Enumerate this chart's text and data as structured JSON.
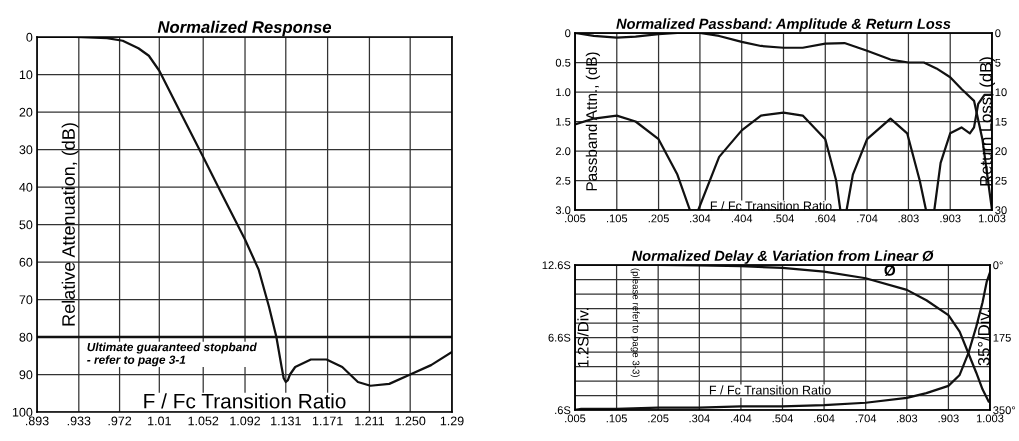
{
  "chart_data": [
    {
      "type": "line",
      "title": "Normalized Response",
      "xlabel": "F / Fc Transition Ratio",
      "ylabel": "Relative Attenuation, (dB)",
      "xlim": [
        0.893,
        1.29
      ],
      "xticks": [
        {
          "value": 0.893,
          "label": ".893"
        },
        {
          "value": 0.933,
          "label": ".933"
        },
        {
          "value": 0.972,
          "label": ".972"
        },
        1.01,
        1.052,
        1.092,
        1.131,
        1.171,
        1.211,
        {
          "value": 1.25,
          "label": "1.250"
        },
        1.29
      ],
      "ylim": [
        100,
        0
      ],
      "yticks": [
        0,
        10,
        20,
        30,
        40,
        50,
        60,
        70,
        80,
        90,
        100
      ],
      "grid": true,
      "legend": false,
      "marker": "none",
      "line_style": "solid",
      "series": [
        {
          "color": "#111111",
          "x": [
            0.893,
            0.93,
            0.96,
            0.975,
            0.99,
            1.0,
            1.01,
            1.03,
            1.052,
            1.07,
            1.092,
            1.105,
            1.115,
            1.122,
            1.127,
            1.129,
            1.131,
            1.133,
            1.135,
            1.14,
            1.155,
            1.17,
            1.185,
            1.2,
            1.212,
            1.23,
            1.25,
            1.27,
            1.29
          ],
          "values": [
            0,
            0,
            0.3,
            1,
            3,
            5,
            9,
            20,
            32,
            42,
            54,
            62,
            72,
            80,
            88,
            91,
            92,
            91.5,
            90,
            88,
            86,
            86,
            88,
            92,
            93,
            92.5,
            90,
            87.5,
            84
          ]
        }
      ],
      "ref_lines": [
        {
          "axis": "y",
          "value": 80,
          "label": "Ultimate guaranteed stopband\n- refer to page 3-1",
          "color": "#111111",
          "line_style": "solid"
        }
      ]
    },
    {
      "type": "line",
      "title": "Normalized Passband: Amplitude & Return Loss",
      "xlabel": "F / Fc Transition Ratio",
      "ylabel": "Passband Attn., (dB)",
      "y2label": "Return Loss, (dB)",
      "xlim": [
        0.005,
        1.003
      ],
      "xticks": [
        {
          "value": 0.005,
          "label": ".005"
        },
        {
          "value": 0.105,
          "label": ".105"
        },
        {
          "value": 0.205,
          "label": ".205"
        },
        {
          "value": 0.304,
          "label": ".304"
        },
        {
          "value": 0.404,
          "label": ".404"
        },
        {
          "value": 0.504,
          "label": ".504"
        },
        {
          "value": 0.604,
          "label": ".604"
        },
        {
          "value": 0.704,
          "label": ".704"
        },
        {
          "value": 0.803,
          "label": ".803"
        },
        {
          "value": 0.903,
          "label": ".903"
        },
        {
          "value": 1.003,
          "label": "1.003"
        }
      ],
      "ylim": [
        3.0,
        0
      ],
      "yticks": [
        0,
        {
          "value": 0.5,
          "label": "0.5"
        },
        {
          "value": 1.0,
          "label": "1.0"
        },
        {
          "value": 1.5,
          "label": "1.5"
        },
        {
          "value": 2.0,
          "label": "2.0"
        },
        {
          "value": 2.5,
          "label": "2.5"
        },
        {
          "value": 3.0,
          "label": "3.0"
        }
      ],
      "y2lim": [
        30,
        0
      ],
      "y2ticks": [
        0,
        5,
        10,
        15,
        20,
        25,
        30
      ],
      "grid": true,
      "legend": false,
      "marker": "none",
      "line_style": "solid",
      "series": [
        {
          "color": "#111111",
          "x": [
            0.005,
            0.05,
            0.105,
            0.15,
            0.205,
            0.25,
            0.304,
            0.35,
            0.404,
            0.45,
            0.504,
            0.55,
            0.604,
            0.65,
            0.704,
            0.76,
            0.803,
            0.84,
            0.87,
            0.903,
            0.93,
            0.96,
            0.98,
            1.003
          ],
          "values": [
            0,
            0.05,
            0.08,
            0.06,
            0.02,
            0,
            0,
            0.05,
            0.15,
            0.22,
            0.25,
            0.25,
            0.18,
            0.17,
            0.3,
            0.45,
            0.5,
            0.5,
            0.6,
            0.75,
            0.95,
            1.15,
            1.8,
            3.0
          ]
        },
        {
          "color": "#111111",
          "axis": "y2",
          "x": [
            0.005,
            0.05,
            0.105,
            0.15,
            0.205,
            0.25,
            0.28,
            0.29,
            0.3,
            0.35,
            0.404,
            0.45,
            0.504,
            0.55,
            0.604,
            0.63,
            0.64,
            0.647,
            0.655,
            0.67,
            0.704,
            0.76,
            0.8,
            0.83,
            0.845,
            0.855,
            0.865,
            0.88,
            0.903,
            0.93,
            0.95,
            0.96,
            0.97,
            0.985,
            1.003
          ],
          "values": [
            15.5,
            14.5,
            14,
            15,
            18,
            24,
            30,
            null,
            30,
            21,
            16.5,
            14,
            13.5,
            14,
            18,
            25,
            30,
            null,
            30,
            24,
            18,
            14.5,
            17,
            25,
            30,
            null,
            30,
            22,
            17,
            16,
            17,
            16,
            12,
            10.5,
            10.5
          ]
        }
      ]
    },
    {
      "type": "line",
      "title": "Normalized Delay & Variation from Linear Ø",
      "ylabel": "1.2S/Div.",
      "y2label": "35°/Div.",
      "xlabel": "F / Fc Transition Ratio",
      "xlim": [
        0.005,
        1.003
      ],
      "xticks": [
        {
          "value": 0.005,
          "label": ".005"
        },
        {
          "value": 0.105,
          "label": ".105"
        },
        {
          "value": 0.205,
          "label": ".205"
        },
        {
          "value": 0.304,
          "label": ".304"
        },
        {
          "value": 0.404,
          "label": ".404"
        },
        {
          "value": 0.504,
          "label": ".504"
        },
        {
          "value": 0.604,
          "label": ".604"
        },
        {
          "value": 0.704,
          "label": ".704"
        },
        {
          "value": 0.803,
          "label": ".803"
        },
        {
          "value": 0.903,
          "label": ".903"
        },
        {
          "value": 1.003,
          "label": "1.003"
        }
      ],
      "ylim": [
        0.6,
        12.6
      ],
      "yticks": [
        {
          "value": 0.6,
          "label": ".6S"
        },
        {
          "value": 1.8,
          "label": null
        },
        {
          "value": 3.0,
          "label": null
        },
        {
          "value": 4.2,
          "label": null
        },
        {
          "value": 5.4,
          "label": null
        },
        {
          "value": 6.6,
          "label": "6.6S"
        },
        {
          "value": 7.8,
          "label": null
        },
        {
          "value": 9.0,
          "label": null
        },
        {
          "value": 10.2,
          "label": null
        },
        {
          "value": 11.4,
          "label": null
        },
        {
          "value": 12.6,
          "label": "12.6S"
        }
      ],
      "y2lim": [
        350,
        0
      ],
      "y2ticks": [
        {
          "value": 0,
          "label": "0°"
        },
        175,
        {
          "value": 350,
          "label": "350°"
        }
      ],
      "grid": true,
      "legend": false,
      "marker": "none",
      "line_style": "solid",
      "annotations": [
        "(please refer to page 3-3)"
      ],
      "series": [
        {
          "color": "#111111",
          "x": [
            0.005,
            0.02,
            0.105,
            0.205,
            0.304,
            0.404,
            0.504,
            0.604,
            0.704,
            0.803,
            0.85,
            0.903,
            0.93,
            0.951,
            0.97,
            0.985,
            0.995,
            1.003
          ],
          "values": [
            0.6,
            0.7,
            0.7,
            0.8,
            0.8,
            0.9,
            0.9,
            1.0,
            1.2,
            1.6,
            2.0,
            2.6,
            3.5,
            5.3,
            7.5,
            9.5,
            11.2,
            12.0
          ]
        },
        {
          "name": "Ø",
          "color": "#111111",
          "axis": "y2",
          "x": [
            0.005,
            0.105,
            0.205,
            0.304,
            0.404,
            0.504,
            0.604,
            0.704,
            0.803,
            0.85,
            0.903,
            0.93,
            0.951,
            0.97,
            0.985,
            1.0
          ],
          "values": [
            0,
            0,
            0,
            1,
            3,
            7,
            16,
            32,
            60,
            85,
            121,
            161,
            213,
            260,
            300,
            330
          ]
        }
      ]
    }
  ]
}
